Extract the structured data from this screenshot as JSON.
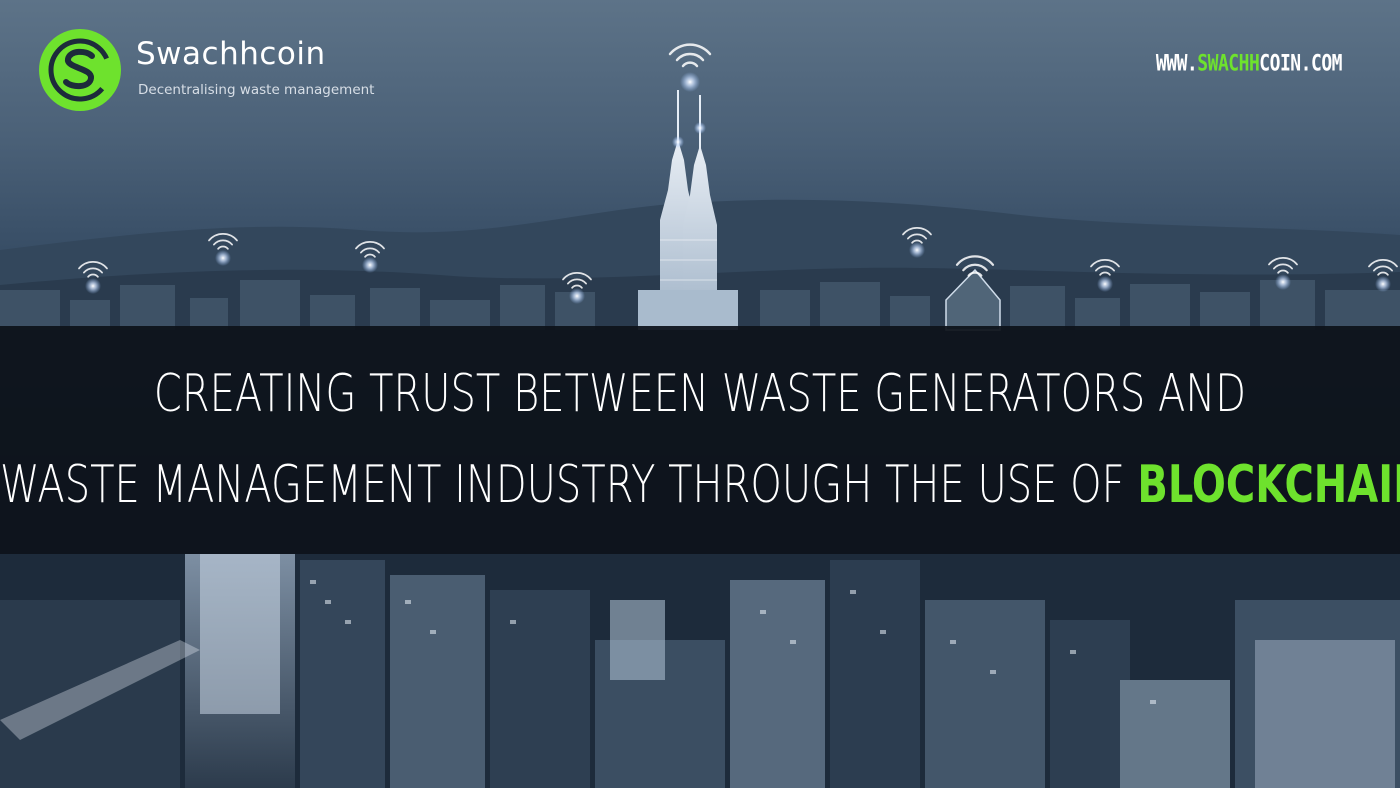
{
  "brand": {
    "name": "Swachhcoin",
    "tagline": "Decentralising waste management",
    "logo_icon": "swachhcoin-logo-icon",
    "accent_color": "#6ee22d"
  },
  "site_url": {
    "prefix": "WWW.",
    "highlight": "SWACHH",
    "suffix": "COIN.COM"
  },
  "headline": {
    "line1": "CREATING TRUST BETWEEN WASTE GENERATORS AND",
    "line2_text": "WASTE MANAGEMENT INDUSTRY THROUGH THE USE OF ",
    "line2_accent": "BLOCKCHAIN"
  },
  "background": {
    "scene": "city-skyline-night",
    "signal_icon": "wifi-signal-icon"
  }
}
